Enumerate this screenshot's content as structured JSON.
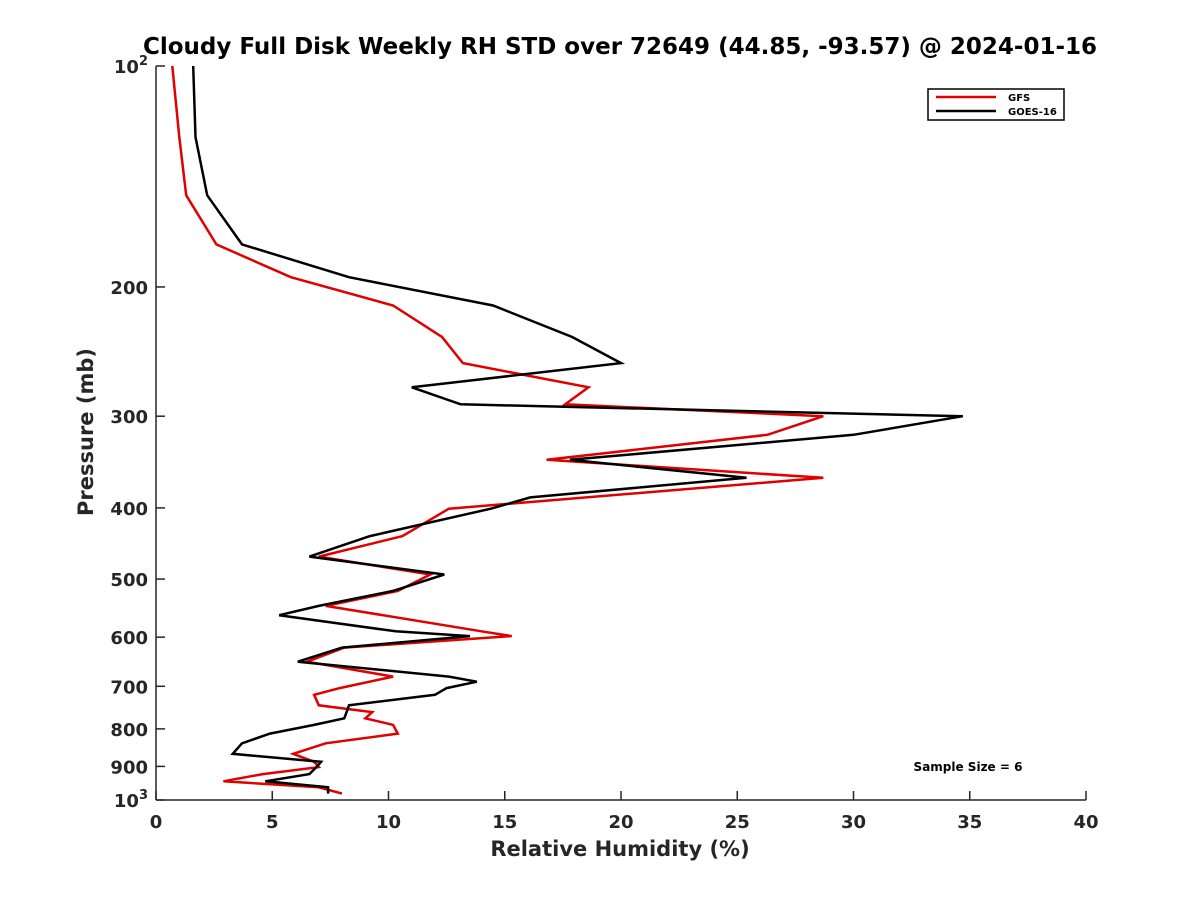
{
  "chart_data": {
    "type": "line",
    "title": "Cloudy Full Disk Weekly RH STD over 72649 (44.85, -93.57) @ 2024-01-16",
    "xlabel": "Relative Humidity (%)",
    "ylabel": "Pressure (mb)",
    "xlim": [
      0,
      40
    ],
    "ylim": [
      100,
      1000
    ],
    "y_scale": "log",
    "y_reversed": true,
    "grid": false,
    "legend_position": "top-right",
    "x_ticks": [
      0,
      5,
      10,
      15,
      20,
      25,
      30,
      35,
      40
    ],
    "x_tick_labels": [
      "0",
      "5",
      "10",
      "15",
      "20",
      "25",
      "30",
      "35",
      "40"
    ],
    "y_ticks": [
      100,
      200,
      300,
      400,
      500,
      600,
      700,
      800,
      900,
      1000
    ],
    "y_tick_labels": [
      {
        "base": "10",
        "exp": "2"
      },
      {
        "base": "200",
        "exp": ""
      },
      {
        "base": "300",
        "exp": ""
      },
      {
        "base": "400",
        "exp": ""
      },
      {
        "base": "500",
        "exp": ""
      },
      {
        "base": "600",
        "exp": ""
      },
      {
        "base": "700",
        "exp": ""
      },
      {
        "base": "800",
        "exp": ""
      },
      {
        "base": "900",
        "exp": ""
      },
      {
        "base": "10",
        "exp": "3"
      }
    ],
    "annotation": "Sample Size = 6",
    "series": [
      {
        "name": "GFS",
        "color": "#e00000",
        "points": [
          [
            0.7,
            100
          ],
          [
            1.0,
            125
          ],
          [
            1.3,
            150
          ],
          [
            2.6,
            175
          ],
          [
            5.8,
            194
          ],
          [
            10.2,
            212
          ],
          [
            12.3,
            234
          ],
          [
            13.2,
            254
          ],
          [
            18.6,
            274
          ],
          [
            17.6,
            289
          ],
          [
            28.7,
            300
          ],
          [
            26.3,
            318
          ],
          [
            16.8,
            344
          ],
          [
            28.7,
            364
          ],
          [
            12.6,
            401
          ],
          [
            10.6,
            437
          ],
          [
            7.0,
            466
          ],
          [
            11.8,
            493
          ],
          [
            10.4,
            519
          ],
          [
            7.3,
            544
          ],
          [
            14.0,
            589
          ],
          [
            15.3,
            598
          ],
          [
            8.1,
            620
          ],
          [
            6.5,
            648
          ],
          [
            10.2,
            679
          ],
          [
            7.9,
            704
          ],
          [
            6.8,
            719
          ],
          [
            7.0,
            743
          ],
          [
            9.3,
            759
          ],
          [
            9.0,
            774
          ],
          [
            10.2,
            790
          ],
          [
            10.4,
            812
          ],
          [
            7.3,
            837
          ],
          [
            5.9,
            865
          ],
          [
            6.8,
            887
          ],
          [
            7.0,
            902
          ],
          [
            4.6,
            922
          ],
          [
            2.9,
            943
          ],
          [
            7.0,
            961
          ],
          [
            8.0,
            980
          ]
        ]
      },
      {
        "name": "GOES-16",
        "color": "#000000",
        "points": [
          [
            1.6,
            100
          ],
          [
            1.7,
            125
          ],
          [
            2.2,
            150
          ],
          [
            3.7,
            175
          ],
          [
            8.3,
            194
          ],
          [
            14.5,
            212
          ],
          [
            17.9,
            234
          ],
          [
            20.0,
            254
          ],
          [
            11.0,
            274
          ],
          [
            13.1,
            289
          ],
          [
            34.7,
            300
          ],
          [
            30.0,
            318
          ],
          [
            17.8,
            344
          ],
          [
            25.4,
            364
          ],
          [
            16.1,
            387
          ],
          [
            14.4,
            401
          ],
          [
            9.2,
            437
          ],
          [
            6.6,
            466
          ],
          [
            12.4,
            493
          ],
          [
            10.2,
            519
          ],
          [
            7.0,
            544
          ],
          [
            5.3,
            560
          ],
          [
            10.3,
            589
          ],
          [
            13.5,
            598
          ],
          [
            8.0,
            620
          ],
          [
            6.1,
            648
          ],
          [
            12.6,
            679
          ],
          [
            13.8,
            690
          ],
          [
            12.5,
            704
          ],
          [
            12.0,
            719
          ],
          [
            8.3,
            743
          ],
          [
            8.2,
            759
          ],
          [
            8.1,
            774
          ],
          [
            6.8,
            790
          ],
          [
            4.9,
            812
          ],
          [
            3.7,
            837
          ],
          [
            3.3,
            865
          ],
          [
            7.1,
            887
          ],
          [
            6.9,
            902
          ],
          [
            6.6,
            922
          ],
          [
            4.7,
            943
          ],
          [
            7.4,
            961
          ],
          [
            7.4,
            980
          ]
        ]
      }
    ]
  }
}
